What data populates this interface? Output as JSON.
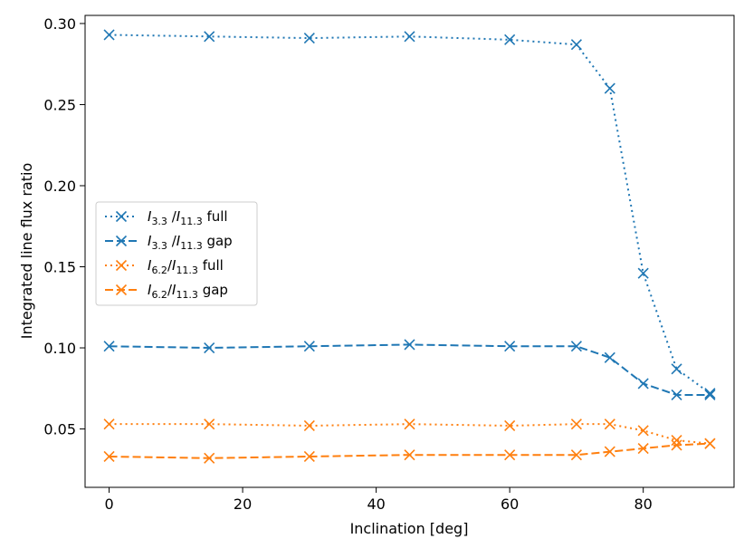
{
  "chart_data": {
    "type": "line",
    "title": "",
    "xlabel": "Inclination [deg]",
    "ylabel": "Integrated line flux ratio",
    "xlim": [
      -3.6,
      93.6
    ],
    "ylim": [
      0.014,
      0.305
    ],
    "x_ticks": [
      0,
      20,
      40,
      60,
      80
    ],
    "x_tick_labels": [
      "0",
      "20",
      "40",
      "60",
      "80"
    ],
    "y_ticks": [
      0.05,
      0.1,
      0.15,
      0.2,
      0.25,
      0.3
    ],
    "y_tick_labels": [
      "0.05",
      "0.10",
      "0.15",
      "0.20",
      "0.25",
      "0.30"
    ],
    "grid": false,
    "legend_position": "center-left",
    "x": [
      0,
      15,
      30,
      45,
      60,
      70,
      75,
      80,
      85,
      90
    ],
    "series": [
      {
        "name": "I3.3 /I11.3 full",
        "label_parts": {
          "a": "I",
          "a_sub": "3.3",
          "sep": " /",
          "b": "I",
          "b_sub": "11.3",
          "tail": "  full"
        },
        "color": "#1f77b4",
        "linestyle": "dotted",
        "marker": "x",
        "values": [
          0.293,
          0.292,
          0.291,
          0.292,
          0.29,
          0.287,
          0.26,
          0.146,
          0.087,
          0.072
        ]
      },
      {
        "name": "I3.3 /I11.3 gap",
        "label_parts": {
          "a": "I",
          "a_sub": "3.3",
          "sep": " /",
          "b": "I",
          "b_sub": "11.3",
          "tail": "  gap"
        },
        "color": "#1f77b4",
        "linestyle": "dashed",
        "marker": "x",
        "values": [
          0.101,
          0.1,
          0.101,
          0.102,
          0.101,
          0.101,
          0.094,
          0.078,
          0.071,
          0.071
        ]
      },
      {
        "name": "I6.2/I11.3 full",
        "label_parts": {
          "a": "I",
          "a_sub": "6.2",
          "sep": "/",
          "b": "I",
          "b_sub": "11.3",
          "tail": "  full"
        },
        "color": "#ff7f0e",
        "linestyle": "dotted",
        "marker": "x",
        "values": [
          0.053,
          0.053,
          0.052,
          0.053,
          0.052,
          0.053,
          0.053,
          0.049,
          0.043,
          0.041
        ]
      },
      {
        "name": "I6.2/I11.3 gap",
        "label_parts": {
          "a": "I",
          "a_sub": "6.2",
          "sep": "/",
          "b": "I",
          "b_sub": "11.3",
          "tail": " gap"
        },
        "color": "#ff7f0e",
        "linestyle": "dashed",
        "marker": "x",
        "values": [
          0.033,
          0.032,
          0.033,
          0.034,
          0.034,
          0.034,
          0.036,
          0.038,
          0.04,
          0.041
        ]
      }
    ]
  }
}
